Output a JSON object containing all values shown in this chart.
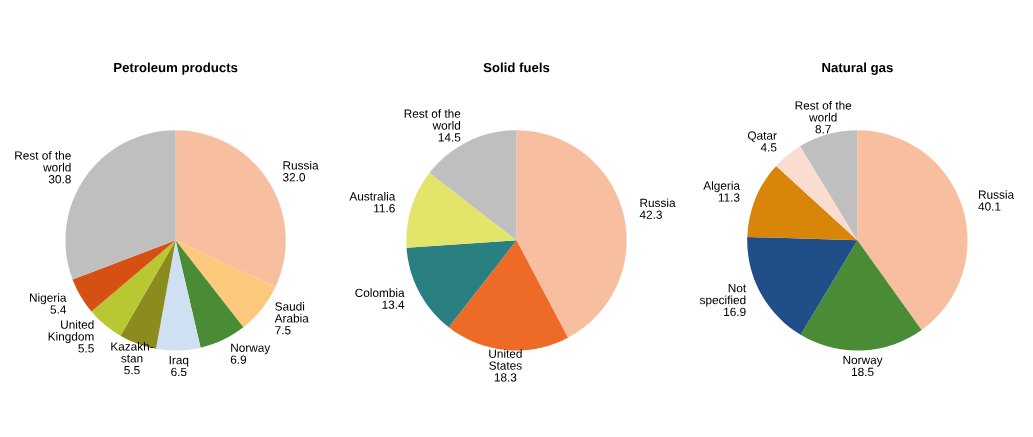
{
  "chart_data": [
    {
      "type": "pie",
      "title": "Petroleum products",
      "categories": [
        "Russia",
        "Saudi\nArabia",
        "Norway",
        "Iraq",
        "Kazakh-\nstan",
        "United\nKingdom",
        "Nigeria",
        "Rest of the\nworld"
      ],
      "values": [
        32.0,
        7.5,
        6.9,
        6.5,
        5.5,
        5.5,
        5.4,
        30.8
      ],
      "colors": [
        "#f7bfa0",
        "#fdc97c",
        "#4a8c35",
        "#cfe0f3",
        "#8c8c1e",
        "#b8c832",
        "#d65014",
        "#bfbfbf"
      ],
      "value_labels": [
        "32.0",
        "7.5",
        "6.9",
        "6.5",
        "5.5",
        "5.5",
        "5.4",
        "30.8"
      ]
    },
    {
      "type": "pie",
      "title": "Solid fuels",
      "categories": [
        "Russia",
        "United\nStates",
        "Colombia",
        "Australia",
        "Rest of the\nworld"
      ],
      "values": [
        42.3,
        18.3,
        13.4,
        11.6,
        14.5
      ],
      "colors": [
        "#f7bfa0",
        "#ee6a27",
        "#2a8080",
        "#e2e569",
        "#bfbfbf"
      ],
      "data_labels": true
    },
    {
      "type": "pie",
      "title": "Natural gas",
      "categories": [
        "Russia",
        "Norway",
        "Not\nspecified",
        "Algeria",
        "Qatar",
        "Rest of the\nworld"
      ],
      "values": [
        40.1,
        18.5,
        16.9,
        11.3,
        4.5,
        8.7
      ],
      "colors": [
        "#f7bfa0",
        "#4a8c35",
        "#1f4e89",
        "#d9850a",
        "#fbdcd0",
        "#bfbfbf"
      ],
      "data_labels": true
    }
  ]
}
